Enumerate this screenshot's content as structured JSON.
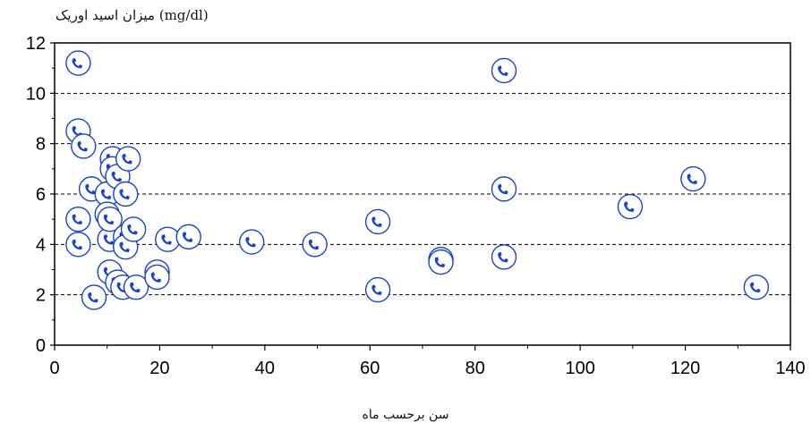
{
  "chart_data": {
    "type": "scatter",
    "xlabel": "سن برحسب ماه",
    "ylabel": "میزان اسید اوریک (mg/dl)",
    "xlim": [
      0,
      140
    ],
    "ylim": [
      0,
      12
    ],
    "xticks": [
      0,
      20,
      40,
      60,
      80,
      100,
      120,
      140
    ],
    "yticks": [
      0,
      2,
      4,
      6,
      8,
      10,
      12
    ],
    "grid": "horizontal dashed",
    "marker": "telephone-icon-in-circle",
    "marker_color": "#1a44c8",
    "points": [
      {
        "x": 4.5,
        "y": 11.2
      },
      {
        "x": 4.5,
        "y": 8.5
      },
      {
        "x": 5.5,
        "y": 7.9
      },
      {
        "x": 4.5,
        "y": 5.0
      },
      {
        "x": 4.5,
        "y": 4.0
      },
      {
        "x": 7.0,
        "y": 6.2
      },
      {
        "x": 7.5,
        "y": 1.9
      },
      {
        "x": 10.0,
        "y": 6.0
      },
      {
        "x": 10.0,
        "y": 5.2
      },
      {
        "x": 10.5,
        "y": 4.2
      },
      {
        "x": 10.5,
        "y": 2.9
      },
      {
        "x": 10.5,
        "y": 5.0
      },
      {
        "x": 11.0,
        "y": 7.4
      },
      {
        "x": 11.0,
        "y": 7.0
      },
      {
        "x": 12.0,
        "y": 6.7
      },
      {
        "x": 12.0,
        "y": 2.5
      },
      {
        "x": 13.0,
        "y": 2.3
      },
      {
        "x": 13.5,
        "y": 6.0
      },
      {
        "x": 13.5,
        "y": 4.3
      },
      {
        "x": 13.5,
        "y": 3.9
      },
      {
        "x": 14.0,
        "y": 7.4
      },
      {
        "x": 15.0,
        "y": 4.6
      },
      {
        "x": 15.5,
        "y": 2.3
      },
      {
        "x": 19.5,
        "y": 2.9
      },
      {
        "x": 19.5,
        "y": 2.7
      },
      {
        "x": 21.5,
        "y": 4.2
      },
      {
        "x": 25.5,
        "y": 4.3
      },
      {
        "x": 37.5,
        "y": 4.1
      },
      {
        "x": 49.5,
        "y": 4.0
      },
      {
        "x": 61.5,
        "y": 4.9
      },
      {
        "x": 61.5,
        "y": 2.2
      },
      {
        "x": 73.5,
        "y": 3.4
      },
      {
        "x": 73.5,
        "y": 3.3
      },
      {
        "x": 85.5,
        "y": 10.9
      },
      {
        "x": 85.5,
        "y": 6.2
      },
      {
        "x": 85.5,
        "y": 3.5
      },
      {
        "x": 109.5,
        "y": 5.5
      },
      {
        "x": 121.5,
        "y": 6.6
      },
      {
        "x": 133.5,
        "y": 2.3
      }
    ]
  }
}
